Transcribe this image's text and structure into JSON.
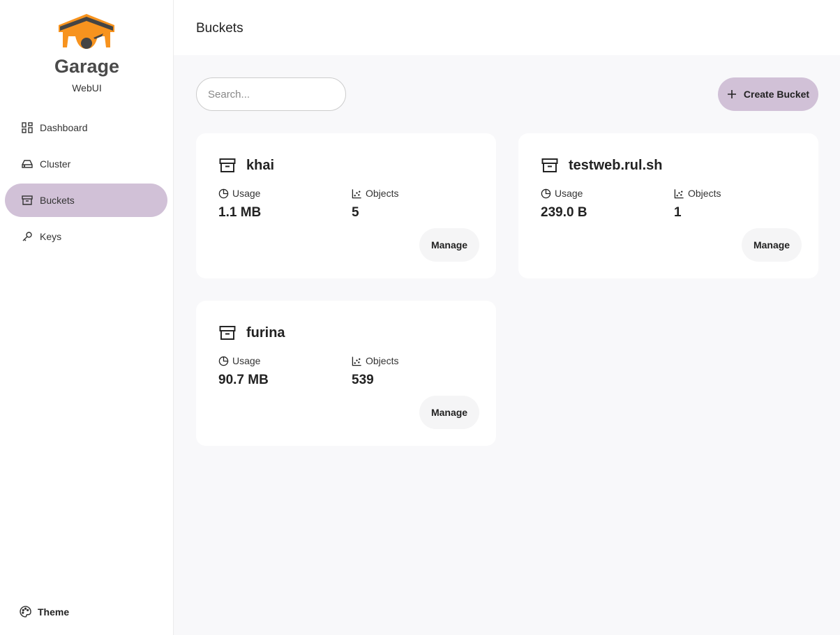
{
  "app": {
    "brand": "Garage",
    "subtitle": "WebUI",
    "accent": "#d1c1d7",
    "logo_orange": "#f7931e"
  },
  "sidebar": {
    "items": [
      {
        "label": "Dashboard",
        "icon": "dashboard-icon"
      },
      {
        "label": "Cluster",
        "icon": "hard-drive-icon"
      },
      {
        "label": "Buckets",
        "icon": "archive-icon",
        "active": true
      },
      {
        "label": "Keys",
        "icon": "key-icon"
      }
    ],
    "theme": "Theme"
  },
  "header": {
    "title": "Buckets"
  },
  "toolbar": {
    "search_placeholder": "Search...",
    "create_label": "Create Bucket"
  },
  "labels": {
    "usage": "Usage",
    "objects": "Objects",
    "manage": "Manage"
  },
  "buckets": [
    {
      "name": "khai",
      "usage": "1.1 MB",
      "objects": "5"
    },
    {
      "name": "testweb.rul.sh",
      "usage": "239.0 B",
      "objects": "1"
    },
    {
      "name": "furina",
      "usage": "90.7 MB",
      "objects": "539"
    }
  ]
}
